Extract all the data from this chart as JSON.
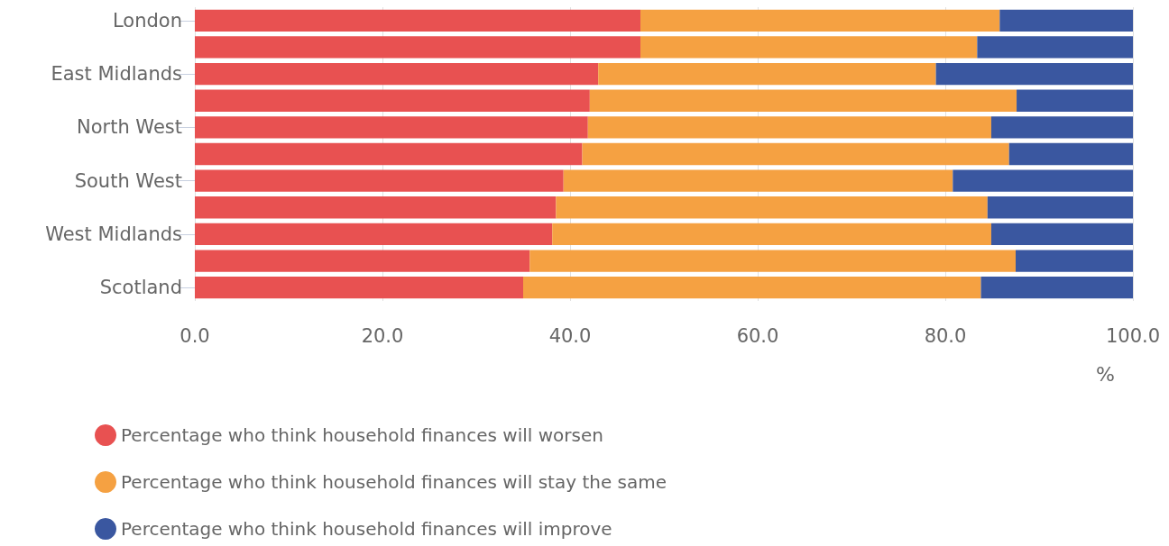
{
  "chart_data": {
    "type": "bar",
    "orientation": "horizontal",
    "stacked": true,
    "categories": [
      "London",
      null,
      "East Midlands",
      null,
      "North West",
      null,
      "South West",
      null,
      "West Midlands",
      null,
      "Scotland"
    ],
    "series": [
      {
        "name": "Percentage who think household finances will worsen",
        "color": "#e85151",
        "values": [
          47.5,
          47.5,
          43.0,
          42.1,
          41.9,
          41.3,
          39.3,
          38.5,
          38.1,
          35.7,
          35.0
        ]
      },
      {
        "name": "Percentage who think household finances will stay the same",
        "color": "#f5a142",
        "values": [
          38.3,
          35.9,
          36.0,
          45.5,
          43.0,
          45.5,
          41.5,
          46.0,
          46.8,
          51.8,
          48.8
        ]
      },
      {
        "name": "Percentage who think household finances will improve",
        "color": "#3a57a0",
        "values": [
          14.2,
          16.6,
          21.0,
          12.4,
          15.1,
          13.2,
          19.2,
          15.5,
          15.1,
          12.5,
          16.2
        ]
      }
    ],
    "xlabel": "%",
    "xlim": [
      0,
      100
    ],
    "xticks": [
      {
        "value": 0,
        "label": "0.0"
      },
      {
        "value": 20,
        "label": "20.0"
      },
      {
        "value": 40,
        "label": "40.0"
      },
      {
        "value": 60,
        "label": "60.0"
      },
      {
        "value": 80,
        "label": "80.0"
      },
      {
        "value": 100,
        "label": "100.0"
      }
    ],
    "grid": "x",
    "legend": "bottom left",
    "marker": "circle"
  }
}
